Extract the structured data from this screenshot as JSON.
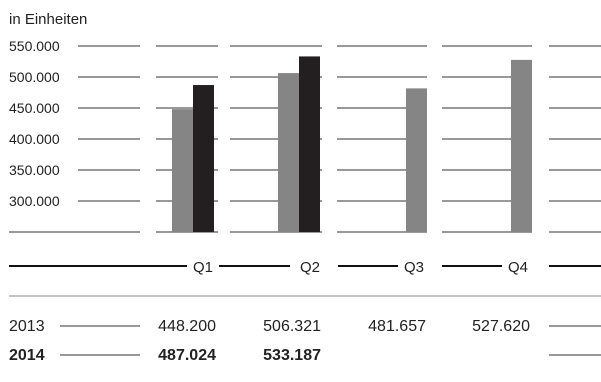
{
  "chart_data": {
    "type": "bar",
    "title": "",
    "unit_label": "in Einheiten",
    "categories": [
      "Q1",
      "Q2",
      "Q3",
      "Q4"
    ],
    "series": [
      {
        "name": "2013",
        "color": "#858585",
        "values": [
          448200,
          506321,
          481657,
          527620
        ],
        "display_values": [
          "448.200",
          "506.321",
          "481.657",
          "527.620"
        ]
      },
      {
        "name": "2014",
        "color": "#231f20",
        "values": [
          487024,
          533187,
          null,
          null
        ],
        "display_values": [
          "487.024",
          "533.187",
          "",
          ""
        ]
      }
    ],
    "y_ticks": [
      "550.000",
      "500.000",
      "450.000",
      "400.000",
      "350.000",
      "300.000"
    ],
    "y_tick_values": [
      550000,
      500000,
      450000,
      400000,
      350000,
      300000
    ],
    "ylim": [
      250000,
      550000
    ],
    "grid": true
  }
}
